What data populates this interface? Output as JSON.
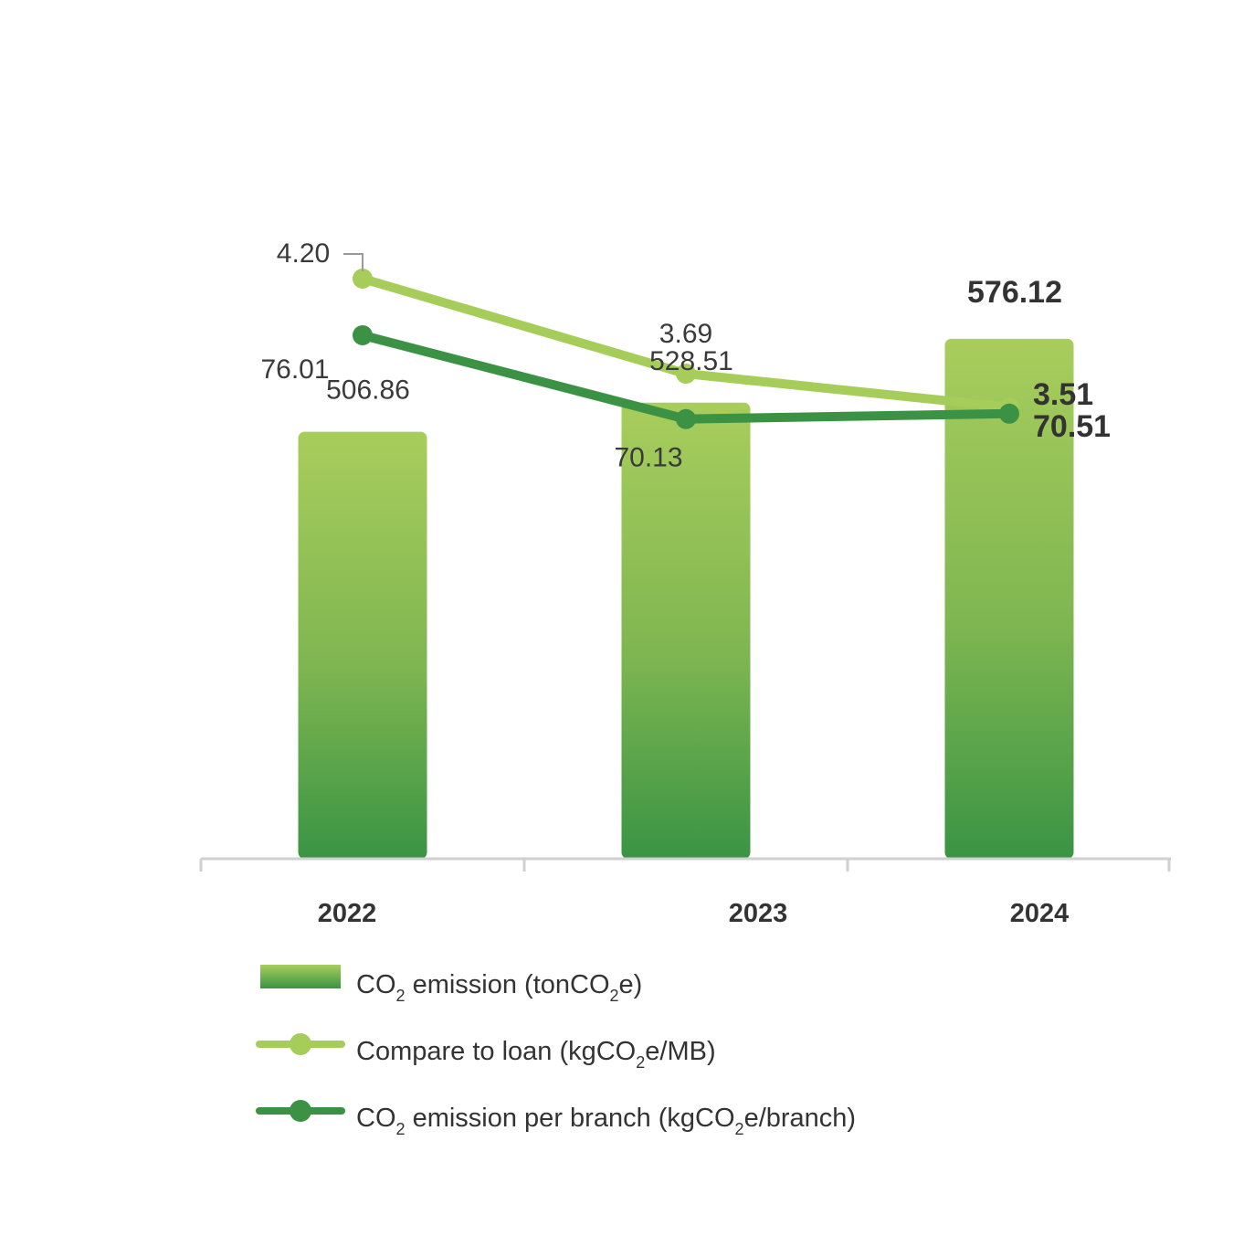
{
  "colors": {
    "bar_top": "#a8cd5c",
    "bar_bottom": "#3a9444",
    "light_line": "#a6cd5a",
    "dark_line": "#3b9244",
    "axis": "#d0d0d0"
  },
  "chart_data": {
    "type": "bar",
    "categories": [
      "2022",
      "2023",
      "2024"
    ],
    "series": [
      {
        "name": "CO2 emission (tonCO2e)",
        "type": "bar",
        "values": [
          506.86,
          528.51,
          576.12
        ],
        "labels": [
          "506.86",
          "528.51",
          "576.12"
        ]
      },
      {
        "name": "Compare to loan (kgCO2e/MB)",
        "type": "line",
        "values": [
          4.2,
          3.69,
          3.51
        ],
        "labels": [
          "4.20",
          "3.69",
          "3.51"
        ]
      },
      {
        "name": "CO2 emission per branch (kgCO2e/branch)",
        "type": "line",
        "values": [
          76.01,
          70.13,
          70.51
        ],
        "labels": [
          "76.01",
          "70.13",
          "70.51"
        ]
      }
    ],
    "legend_position": "bottom-left",
    "grid": false
  },
  "legend": [
    {
      "pre": "CO",
      "sub": "2",
      "mid": " emission (tonCO",
      "sub2": "2",
      "post": "e)"
    },
    {
      "pre": "Compare to loan (kgCO",
      "sub": "2",
      "mid": "e/MB)",
      "sub2": "",
      "post": ""
    },
    {
      "pre": "CO",
      "sub": "2",
      "mid": " emission per branch (kgCO",
      "sub2": "2",
      "post": "e/branch)"
    }
  ]
}
